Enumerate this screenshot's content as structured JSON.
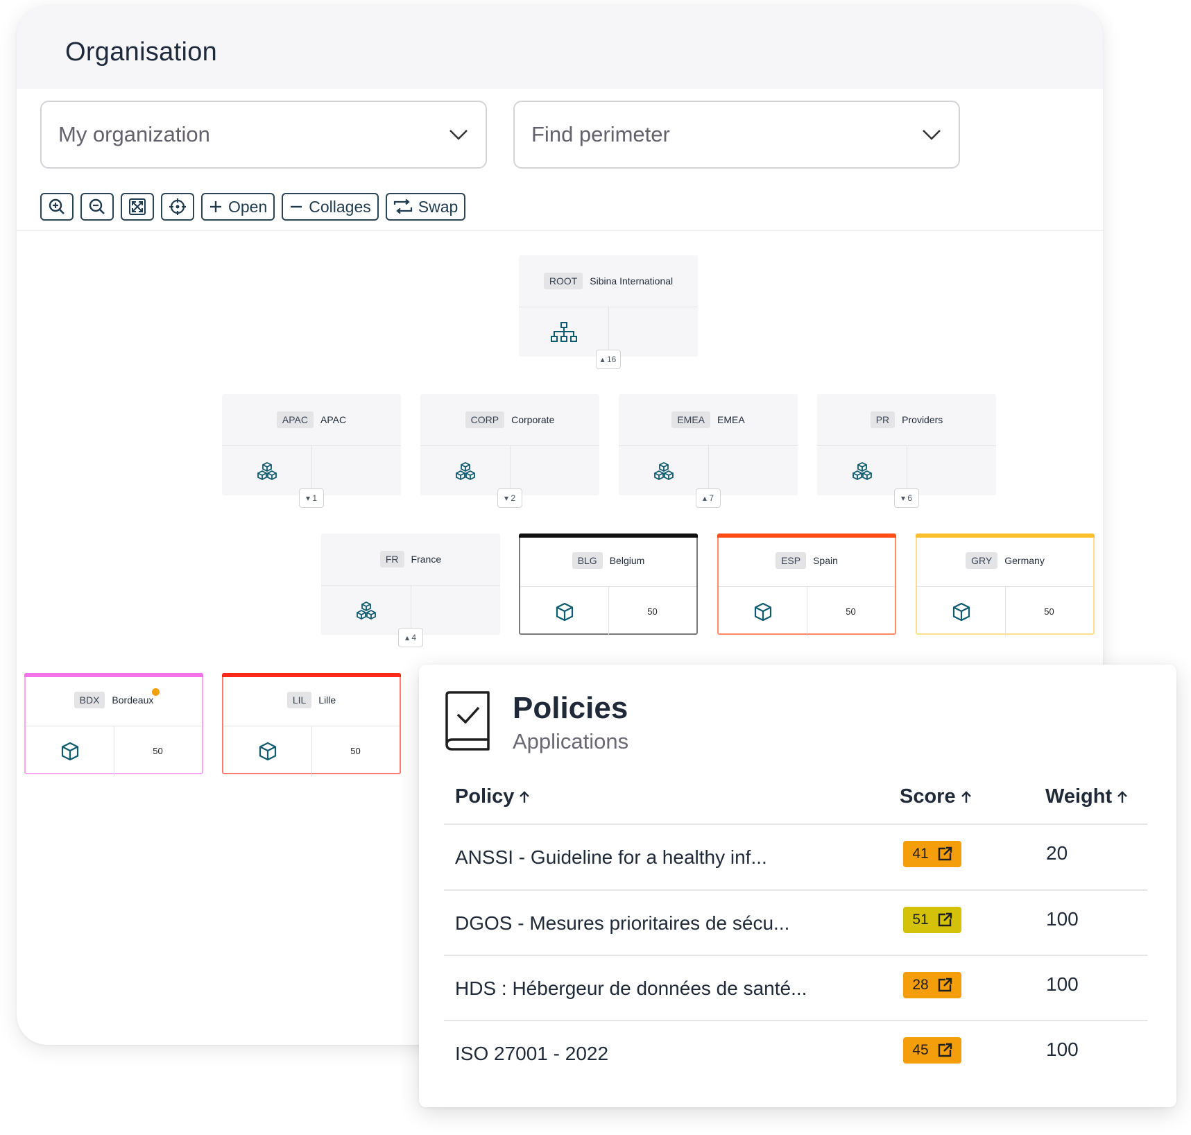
{
  "org": {
    "title": "Organisation",
    "org_select": "My organization",
    "perimeter_select": "Find perimeter",
    "toolbar": {
      "open": "Open",
      "collapse": "Collages",
      "swap": "Swap"
    }
  },
  "tree": {
    "root": {
      "code": "ROOT",
      "name": "Sibina International",
      "count": "16"
    },
    "level1": [
      {
        "code": "APAC",
        "name": "APAC",
        "count": "1"
      },
      {
        "code": "CORP",
        "name": "Corporate",
        "count": "2"
      },
      {
        "code": "EMEA",
        "name": "EMEA",
        "count": "7"
      },
      {
        "code": "PR",
        "name": "Providers",
        "count": "6"
      }
    ],
    "level2": [
      {
        "code": "FR",
        "name": "France",
        "count": "4"
      },
      {
        "code": "BLG",
        "name": "Belgium",
        "score": "50",
        "color": "#111111"
      },
      {
        "code": "ESP",
        "name": "Spain",
        "score": "50",
        "color": "#ff4d1a"
      },
      {
        "code": "GRY",
        "name": "Germany",
        "score": "50",
        "color": "#fbc02d"
      }
    ],
    "level3": [
      {
        "code": "BDX",
        "name": "Bordeaux",
        "score": "50",
        "color": "#f472e8"
      },
      {
        "code": "LIL",
        "name": "Lille",
        "score": "50",
        "color": "#ff2a1a"
      }
    ]
  },
  "policies": {
    "title": "Policies",
    "subtitle": "Applications",
    "columns": {
      "policy": "Policy",
      "score": "Score",
      "weight": "Weight"
    },
    "rows": [
      {
        "policy": "ANSSI - Guideline for a healthy inf...",
        "score": "41",
        "weight": "20",
        "color": "#f59e0b"
      },
      {
        "policy": "DGOS - Mesures prioritaires de sécu...",
        "score": "51",
        "weight": "100",
        "color": "#d4c20a"
      },
      {
        "policy": "HDS : Hébergeur de données de santé...",
        "score": "28",
        "weight": "100",
        "color": "#f59e0b"
      },
      {
        "policy": "ISO 27001 - 2022",
        "score": "45",
        "weight": "100",
        "color": "#f59e0b"
      }
    ]
  },
  "colors": {
    "accent": "#1e3a4c",
    "icon": "#0e5a6e"
  }
}
